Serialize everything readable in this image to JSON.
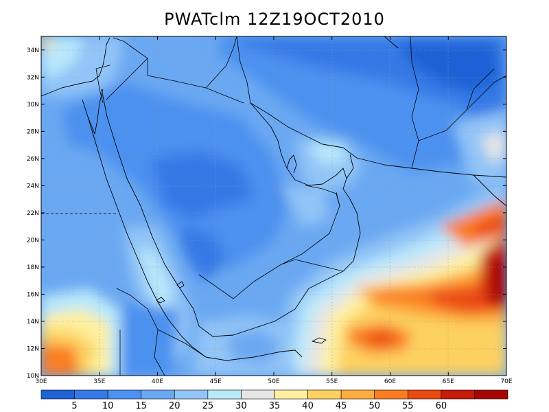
{
  "title": "PWATclm  12Z19OCT2010",
  "map": {
    "lon_range": [
      30,
      70
    ],
    "lat_range": [
      10,
      35
    ],
    "x_ticks": [
      "30E",
      "35E",
      "40E",
      "45E",
      "50E",
      "55E",
      "60E",
      "65E",
      "70E"
    ],
    "y_ticks": [
      "10N",
      "12N",
      "14N",
      "16N",
      "18N",
      "20N",
      "22N",
      "24N",
      "26N",
      "28N",
      "30N",
      "32N",
      "34N"
    ]
  },
  "colorbar": {
    "labels": [
      "5",
      "10",
      "15",
      "20",
      "25",
      "30",
      "35",
      "40",
      "45",
      "50",
      "55",
      "60"
    ],
    "colors": [
      "#1f62d6",
      "#3579e6",
      "#4b91ef",
      "#6aa8f2",
      "#92c5f7",
      "#b9e8fb",
      "#e6e6e6",
      "#fef09e",
      "#fdd160",
      "#fdae3f",
      "#fb7d21",
      "#eb4a12",
      "#c61a0a",
      "#a80605"
    ]
  }
}
